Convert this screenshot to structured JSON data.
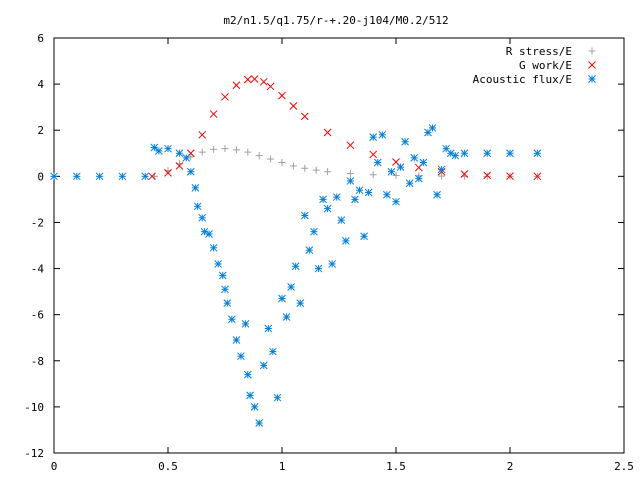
{
  "chart_data": {
    "type": "scatter",
    "title": "m2/n1.5/q1.75/r-+.20-j104/M0.2/512",
    "xlabel": "",
    "ylabel": "",
    "xlim": [
      0,
      2.5
    ],
    "ylim": [
      -12,
      6
    ],
    "x_ticks": [
      0,
      0.5,
      1,
      1.5,
      2,
      2.5
    ],
    "x_tick_labels": [
      "0",
      "0.5",
      "1",
      "1.5",
      "2",
      "2.5"
    ],
    "y_ticks": [
      -12,
      -10,
      -8,
      -6,
      -4,
      -2,
      0,
      2,
      4,
      6
    ],
    "y_tick_labels": [
      "-12",
      "-10",
      "-8",
      "-6",
      "-4",
      "-2",
      "0",
      "2",
      "4",
      "6"
    ],
    "grid": false,
    "legend_position": "top-right",
    "series": [
      {
        "name": "R stress/E",
        "marker": "plus",
        "color": "#a0a0a0",
        "x": [
          0.44,
          0.5,
          0.55,
          0.6,
          0.65,
          0.7,
          0.75,
          0.8,
          0.85,
          0.9,
          0.95,
          1.0,
          1.05,
          1.1,
          1.15,
          1.2,
          1.3,
          1.4,
          1.5,
          1.6,
          1.7,
          1.8,
          1.9,
          2.0,
          2.12
        ],
        "y": [
          0.0,
          0.25,
          0.55,
          0.85,
          1.05,
          1.17,
          1.2,
          1.15,
          1.05,
          0.9,
          0.75,
          0.6,
          0.45,
          0.35,
          0.27,
          0.2,
          0.12,
          0.07,
          0.04,
          0.02,
          0.01,
          0.0,
          0.0,
          0.0,
          0.0
        ]
      },
      {
        "name": "G work/E",
        "marker": "cross",
        "color": "#ff0000",
        "x": [
          0.43,
          0.5,
          0.55,
          0.6,
          0.65,
          0.7,
          0.75,
          0.8,
          0.85,
          0.88,
          0.92,
          0.95,
          1.0,
          1.05,
          1.1,
          1.2,
          1.3,
          1.4,
          1.5,
          1.6,
          1.7,
          1.8,
          1.9,
          2.0,
          2.12
        ],
        "y": [
          0.0,
          0.15,
          0.45,
          1.0,
          1.8,
          2.7,
          3.45,
          3.95,
          4.2,
          4.22,
          4.1,
          3.9,
          3.5,
          3.05,
          2.6,
          1.9,
          1.35,
          0.95,
          0.62,
          0.38,
          0.2,
          0.1,
          0.04,
          0.01,
          0.0
        ]
      },
      {
        "name": "Acoustic flux/E",
        "marker": "star",
        "color": "#0080e0",
        "x": [
          0.0,
          0.1,
          0.2,
          0.3,
          0.4,
          0.44,
          0.46,
          0.5,
          0.55,
          0.58,
          0.6,
          0.62,
          0.63,
          0.65,
          0.66,
          0.68,
          0.7,
          0.72,
          0.74,
          0.75,
          0.76,
          0.78,
          0.8,
          0.82,
          0.84,
          0.85,
          0.86,
          0.88,
          0.9,
          0.92,
          0.94,
          0.96,
          0.98,
          1.0,
          1.02,
          1.04,
          1.06,
          1.08,
          1.1,
          1.12,
          1.14,
          1.16,
          1.18,
          1.2,
          1.22,
          1.24,
          1.26,
          1.28,
          1.3,
          1.32,
          1.34,
          1.36,
          1.38,
          1.4,
          1.42,
          1.44,
          1.46,
          1.48,
          1.5,
          1.52,
          1.54,
          1.56,
          1.58,
          1.6,
          1.62,
          1.64,
          1.66,
          1.68,
          1.7,
          1.72,
          1.74,
          1.76,
          1.8,
          1.9,
          2.0,
          2.12
        ],
        "y": [
          0.0,
          0.0,
          0.0,
          0.0,
          0.0,
          1.25,
          1.1,
          1.2,
          1.0,
          0.8,
          0.2,
          -0.5,
          -1.3,
          -1.8,
          -2.4,
          -2.5,
          -3.1,
          -3.8,
          -4.3,
          -4.9,
          -5.5,
          -6.2,
          -7.1,
          -7.8,
          -6.4,
          -8.6,
          -9.5,
          -10.0,
          -10.7,
          -8.2,
          -6.6,
          -7.6,
          -9.6,
          -5.3,
          -6.1,
          -4.8,
          -3.9,
          -5.5,
          -1.7,
          -3.2,
          -2.4,
          -4.0,
          -1.0,
          -1.4,
          -3.8,
          -0.9,
          -1.9,
          -2.8,
          -0.2,
          -1.0,
          -0.6,
          -2.6,
          -0.7,
          1.7,
          0.6,
          1.8,
          -0.8,
          0.2,
          -1.1,
          0.4,
          1.5,
          -0.3,
          0.8,
          -0.1,
          0.6,
          1.9,
          2.1,
          -0.8,
          0.3,
          1.2,
          1.0,
          0.9,
          1.0,
          1.0,
          1.0,
          1.0
        ]
      }
    ]
  }
}
